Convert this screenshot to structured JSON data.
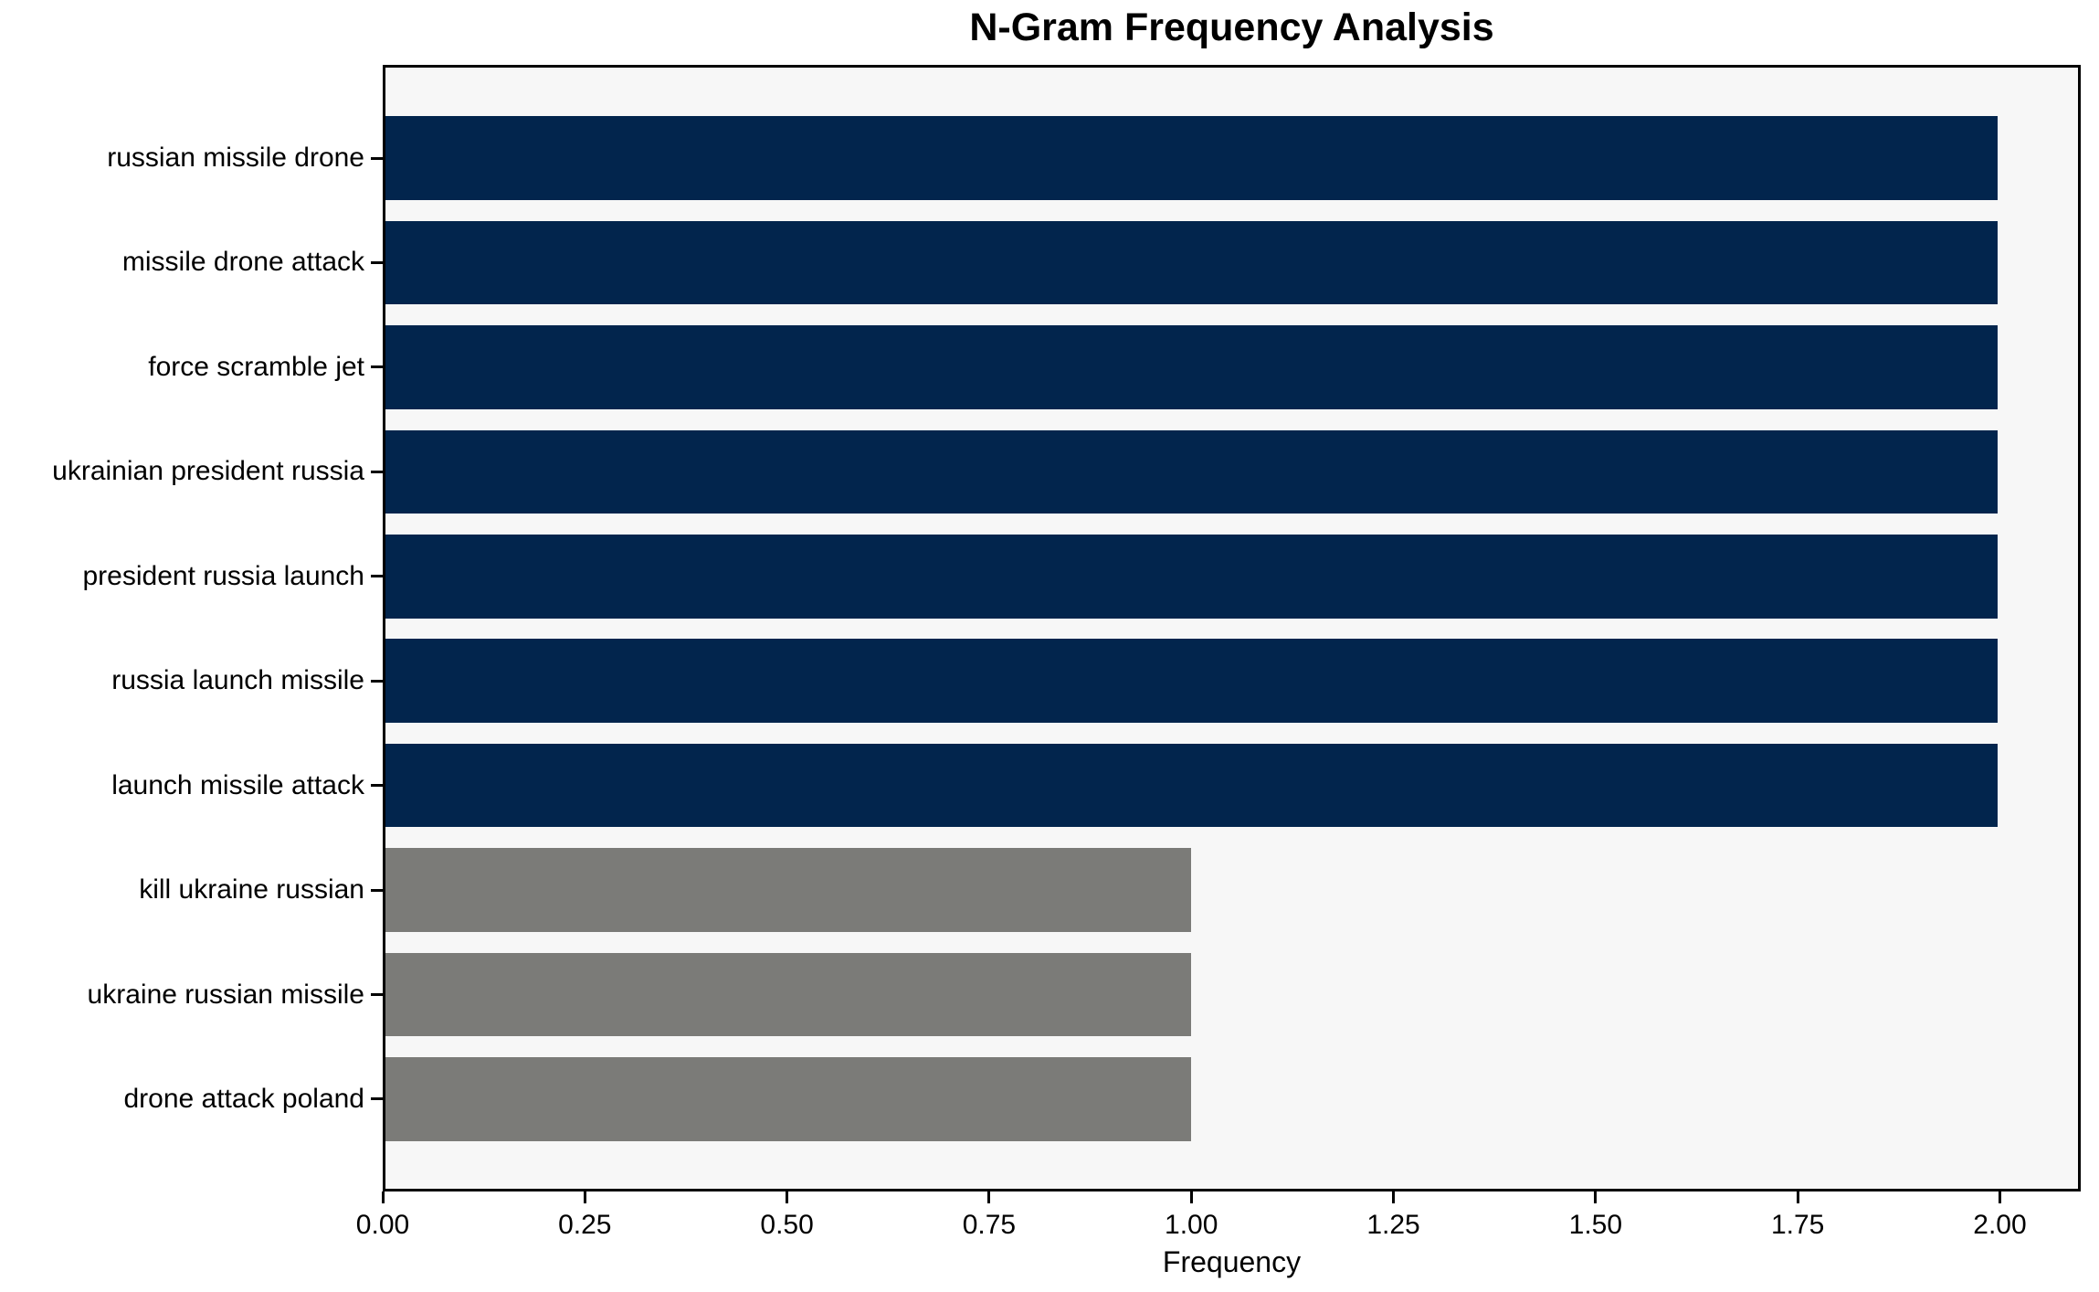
{
  "chart_data": {
    "type": "bar",
    "orientation": "horizontal",
    "title": "N-Gram Frequency Analysis",
    "xlabel": "Frequency",
    "ylabel": "",
    "categories": [
      "russian missile drone",
      "missile drone attack",
      "force scramble jet",
      "ukrainian president russia",
      "president russia launch",
      "russia launch missile",
      "launch missile attack",
      "kill ukraine russian",
      "ukraine russian missile",
      "drone attack poland"
    ],
    "values": [
      2,
      2,
      2,
      2,
      2,
      2,
      2,
      1,
      1,
      1
    ],
    "bar_colors": [
      "#02254d",
      "#02254d",
      "#02254d",
      "#02254d",
      "#02254d",
      "#02254d",
      "#02254d",
      "#7b7b78",
      "#7b7b78",
      "#7b7b78"
    ],
    "xlim": [
      0,
      2.1
    ],
    "x_tick_values": [
      0,
      0.25,
      0.5,
      0.75,
      1.0,
      1.25,
      1.5,
      1.75,
      2.0
    ],
    "x_tick_labels": [
      "0.00",
      "0.25",
      "0.50",
      "0.75",
      "1.00",
      "1.25",
      "1.50",
      "1.75",
      "2.00"
    ],
    "grid": false,
    "legend": null,
    "colors": {
      "highlight_bar": "#02254d",
      "secondary_bar": "#7b7b78",
      "plot_background": "#f7f7f7",
      "spine": "#000000",
      "text": "#000000"
    }
  }
}
